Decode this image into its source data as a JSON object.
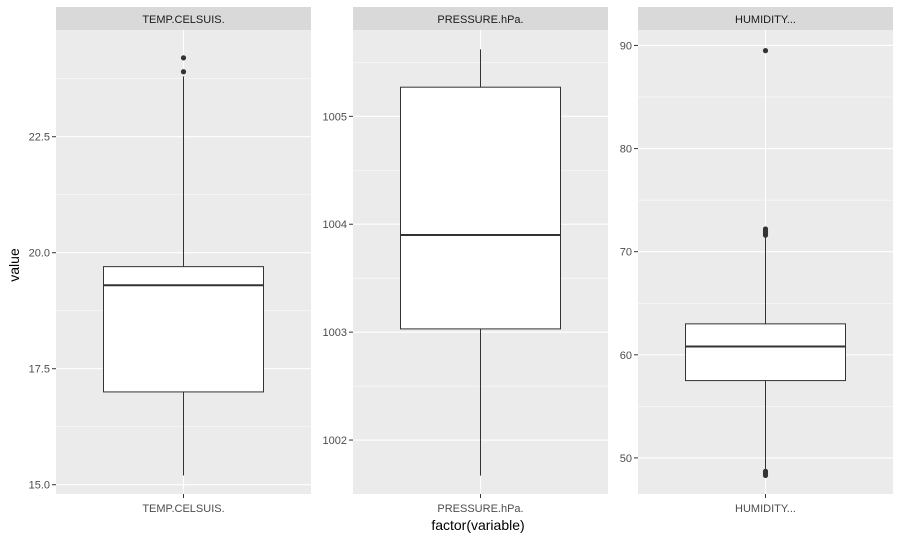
{
  "chart_data": {
    "type": "boxplot",
    "xlabel": "factor(variable)",
    "ylabel": "value",
    "facets": "free_y",
    "grid": true,
    "panels": [
      {
        "strip": "TEMP.CELSUIS.",
        "category": "TEMP.CELSUIS.",
        "ylim": [
          14.8,
          24.8
        ],
        "yticks": [
          15.0,
          17.5,
          20.0,
          22.5
        ],
        "ytick_labels": [
          "15.0",
          "17.5",
          "20.0",
          "22.5"
        ],
        "whisker_low": 15.2,
        "q1": 17.0,
        "median": 19.3,
        "q3": 19.7,
        "whisker_high": 23.8,
        "outliers": [
          23.9,
          24.2
        ]
      },
      {
        "strip": "PRESSURE.hPa.",
        "category": "PRESSURE.hPa.",
        "ylim": [
          1001.5,
          1005.8
        ],
        "yticks": [
          1002,
          1003,
          1004,
          1005
        ],
        "ytick_labels": [
          "1002",
          "1003",
          "1004",
          "1005"
        ],
        "whisker_low": 1001.67,
        "q1": 1003.03,
        "median": 1003.9,
        "q3": 1005.27,
        "whisker_high": 1005.62,
        "outliers": []
      },
      {
        "strip": "HUMIDITY...",
        "category": "HUMIDITY...",
        "ylim": [
          46.5,
          91.5
        ],
        "yticks": [
          50,
          60,
          70,
          80,
          90
        ],
        "ytick_labels": [
          "50",
          "60",
          "70",
          "80",
          "90"
        ],
        "whisker_low": 48.8,
        "q1": 57.5,
        "median": 60.8,
        "q3": 63.0,
        "whisker_high": 71.5,
        "outliers": [
          48.3,
          48.5,
          48.7,
          71.6,
          71.8,
          72.0,
          72.2,
          89.5
        ]
      }
    ]
  }
}
